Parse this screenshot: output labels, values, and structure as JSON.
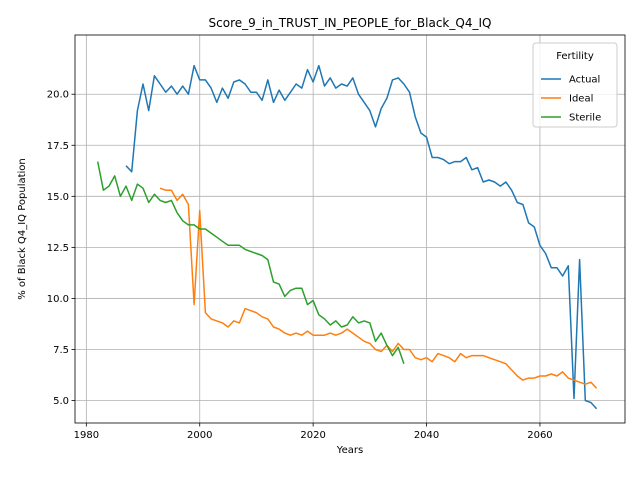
{
  "chart_data": {
    "type": "line",
    "title": "Score_9_in_TRUST_IN_PEOPLE_for_Black_Q4_IQ",
    "xlabel": "Years",
    "ylabel": "% of Black Q4_IQ Population",
    "xlim": [
      1978,
      2075
    ],
    "ylim": [
      3.9,
      22.9
    ],
    "xticks": [
      1980,
      2000,
      2020,
      2040,
      2060
    ],
    "yticks": [
      5.0,
      7.5,
      10.0,
      12.5,
      15.0,
      17.5,
      20.0
    ],
    "ytick_labels": [
      "5.0",
      "7.5",
      "10.0",
      "12.5",
      "15.0",
      "17.5",
      "20.0"
    ],
    "grid": true,
    "legend": {
      "title": "Fertility",
      "position": "top-right"
    },
    "colors": {
      "Actual": "#1f77b4",
      "Ideal": "#ff7f0e",
      "Sterile": "#2ca02c"
    },
    "series": [
      {
        "name": "Actual",
        "x": [
          1987,
          1988,
          1989,
          1990,
          1991,
          1992,
          1993,
          1994,
          1995,
          1996,
          1997,
          1998,
          1999,
          2000,
          2001,
          2002,
          2003,
          2004,
          2005,
          2006,
          2007,
          2008,
          2009,
          2010,
          2011,
          2012,
          2013,
          2014,
          2015,
          2016,
          2017,
          2018,
          2019,
          2020,
          2021,
          2022,
          2023,
          2024,
          2025,
          2026,
          2027,
          2028,
          2029,
          2030,
          2031,
          2032,
          2033,
          2034,
          2035,
          2036,
          2037,
          2038,
          2039,
          2040,
          2041,
          2042,
          2043,
          2044,
          2045,
          2046,
          2047,
          2048,
          2049,
          2050,
          2051,
          2052,
          2053,
          2054,
          2055,
          2056,
          2057,
          2058,
          2059,
          2060,
          2061,
          2062,
          2063,
          2064,
          2065,
          2066,
          2067,
          2068,
          2069,
          2070
        ],
        "values": [
          16.5,
          16.2,
          19.2,
          20.5,
          19.2,
          20.9,
          20.5,
          20.1,
          20.4,
          20.0,
          20.4,
          20.0,
          21.4,
          20.7,
          20.7,
          20.3,
          19.6,
          20.3,
          19.8,
          20.6,
          20.7,
          20.5,
          20.1,
          20.1,
          19.7,
          20.7,
          19.6,
          20.2,
          19.7,
          20.1,
          20.5,
          20.3,
          21.2,
          20.6,
          21.4,
          20.4,
          20.8,
          20.3,
          20.5,
          20.4,
          20.8,
          20.0,
          19.6,
          19.2,
          18.4,
          19.3,
          19.8,
          20.7,
          20.8,
          20.5,
          20.1,
          18.9,
          18.1,
          17.9,
          16.9,
          16.9,
          16.8,
          16.6,
          16.7,
          16.7,
          16.9,
          16.3,
          16.4,
          15.7,
          15.8,
          15.7,
          15.5,
          15.7,
          15.3,
          14.7,
          14.6,
          13.7,
          13.5,
          12.6,
          12.2,
          11.5,
          11.5,
          11.1,
          11.6,
          5.1,
          11.9,
          5.0,
          4.9,
          4.6
        ]
      },
      {
        "name": "Ideal",
        "x": [
          1993,
          1994,
          1995,
          1996,
          1997,
          1998,
          1999,
          2000,
          2001,
          2002,
          2003,
          2004,
          2005,
          2006,
          2007,
          2008,
          2009,
          2010,
          2011,
          2012,
          2013,
          2014,
          2015,
          2016,
          2017,
          2018,
          2019,
          2020,
          2021,
          2022,
          2023,
          2024,
          2025,
          2026,
          2027,
          2028,
          2029,
          2030,
          2031,
          2032,
          2033,
          2034,
          2035,
          2036,
          2037,
          2038,
          2039,
          2040,
          2041,
          2042,
          2043,
          2044,
          2045,
          2046,
          2047,
          2048,
          2049,
          2050,
          2051,
          2052,
          2053,
          2054,
          2055,
          2056,
          2057,
          2058,
          2059,
          2060,
          2061,
          2062,
          2063,
          2064,
          2065,
          2066,
          2067,
          2068,
          2069,
          2070
        ],
        "values": [
          15.4,
          15.3,
          15.3,
          14.8,
          15.1,
          14.6,
          9.7,
          14.3,
          9.3,
          9.0,
          8.9,
          8.8,
          8.6,
          8.9,
          8.8,
          9.5,
          9.4,
          9.3,
          9.1,
          9.0,
          8.6,
          8.5,
          8.3,
          8.2,
          8.3,
          8.2,
          8.4,
          8.2,
          8.2,
          8.2,
          8.3,
          8.2,
          8.3,
          8.5,
          8.3,
          8.1,
          7.9,
          7.8,
          7.5,
          7.4,
          7.7,
          7.4,
          7.8,
          7.5,
          7.5,
          7.1,
          7.0,
          7.1,
          6.9,
          7.3,
          7.2,
          7.1,
          6.9,
          7.3,
          7.1,
          7.2,
          7.2,
          7.2,
          7.1,
          7.0,
          6.9,
          6.8,
          6.5,
          6.2,
          6.0,
          6.1,
          6.1,
          6.2,
          6.2,
          6.3,
          6.2,
          6.4,
          6.1,
          6.0,
          5.9,
          5.8,
          5.9,
          5.6
        ]
      },
      {
        "name": "Sterile",
        "x": [
          1982,
          1983,
          1984,
          1985,
          1986,
          1987,
          1988,
          1989,
          1990,
          1991,
          1992,
          1993,
          1994,
          1995,
          1996,
          1997,
          1998,
          1999,
          2000,
          2001,
          2002,
          2003,
          2004,
          2005,
          2006,
          2007,
          2008,
          2009,
          2010,
          2011,
          2012,
          2013,
          2014,
          2015,
          2016,
          2017,
          2018,
          2019,
          2020,
          2021,
          2022,
          2023,
          2024,
          2025,
          2026,
          2027,
          2028,
          2029,
          2030,
          2031,
          2032,
          2033,
          2034,
          2035,
          2036
        ],
        "values": [
          16.7,
          15.3,
          15.5,
          16.0,
          15.0,
          15.5,
          14.8,
          15.6,
          15.4,
          14.7,
          15.1,
          14.8,
          14.7,
          14.8,
          14.2,
          13.8,
          13.6,
          13.6,
          13.4,
          13.4,
          13.2,
          13.0,
          12.8,
          12.6,
          12.6,
          12.6,
          12.4,
          12.3,
          12.2,
          12.1,
          11.9,
          10.8,
          10.7,
          10.1,
          10.4,
          10.5,
          10.5,
          9.7,
          9.9,
          9.2,
          9.0,
          8.7,
          8.9,
          8.6,
          8.7,
          9.1,
          8.8,
          8.9,
          8.8,
          7.9,
          8.3,
          7.7,
          7.2,
          7.6,
          6.8
        ]
      }
    ]
  }
}
